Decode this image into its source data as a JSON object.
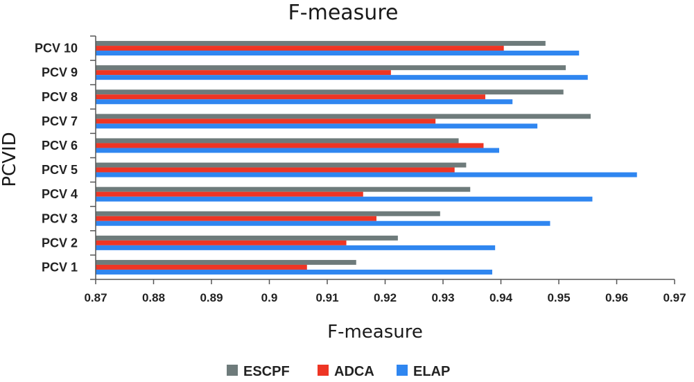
{
  "chart_data": {
    "type": "bar",
    "orientation": "horizontal",
    "title": "F-measure",
    "xlabel": "F-measure",
    "ylabel": "PCVID",
    "xlim": [
      0.87,
      0.97
    ],
    "xticks": [
      "0.87",
      "0.88",
      "0.89",
      "0.9",
      "0.91",
      "0.92",
      "0.93",
      "0.94",
      "0.95",
      "0.96",
      "0.97"
    ],
    "categories": [
      "PCV 1",
      "PCV 2",
      "PCV 3",
      "PCV 4",
      "PCV 5",
      "PCV 6",
      "PCV 7",
      "PCV 8",
      "PCV 9",
      "PCV 10"
    ],
    "series": [
      {
        "name": "ESCPF",
        "color": "#6e7b7b",
        "values": [
          0.915,
          0.9222,
          0.9295,
          0.9347,
          0.934,
          0.9327,
          0.9555,
          0.9508,
          0.9512,
          0.9477
        ]
      },
      {
        "name": "ADCA",
        "color": "#ee3524",
        "values": [
          0.9065,
          0.9133,
          0.9185,
          0.9162,
          0.932,
          0.937,
          0.9287,
          0.9373,
          0.921,
          0.9405
        ]
      },
      {
        "name": "ELAP",
        "color": "#2f86f0",
        "values": [
          0.9385,
          0.939,
          0.9485,
          0.9558,
          0.9635,
          0.9397,
          0.9463,
          0.942,
          0.955,
          0.9535
        ]
      }
    ],
    "grid": false,
    "legend": "bottom"
  }
}
